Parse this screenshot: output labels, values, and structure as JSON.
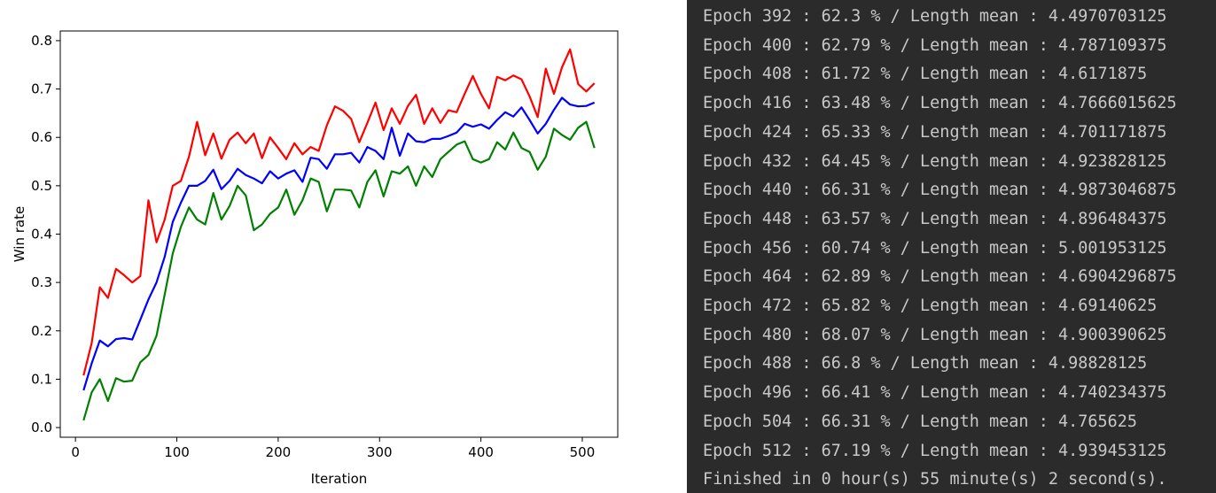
{
  "chart_data": {
    "type": "line",
    "xlabel": "Iteration",
    "ylabel": "Win rate",
    "xlim": [
      -15,
      535
    ],
    "ylim": [
      -0.02,
      0.82
    ],
    "x_ticks": [
      "0",
      "100",
      "200",
      "300",
      "400",
      "500"
    ],
    "y_ticks": [
      "0.0",
      "0.1",
      "0.2",
      "0.3",
      "0.4",
      "0.5",
      "0.6",
      "0.7",
      "0.8"
    ],
    "grid": false,
    "x": [
      8,
      16,
      24,
      32,
      40,
      48,
      56,
      64,
      72,
      80,
      88,
      96,
      104,
      112,
      120,
      128,
      136,
      144,
      152,
      160,
      168,
      176,
      184,
      192,
      200,
      208,
      216,
      224,
      232,
      240,
      248,
      256,
      264,
      272,
      280,
      288,
      296,
      304,
      312,
      320,
      328,
      336,
      344,
      352,
      360,
      368,
      376,
      384,
      392,
      400,
      408,
      416,
      424,
      432,
      440,
      448,
      456,
      464,
      472,
      480,
      488,
      496,
      504,
      512
    ],
    "series": [
      {
        "color": "#ff0000",
        "values": [
          0.108,
          0.175,
          0.29,
          0.268,
          0.328,
          0.315,
          0.3,
          0.313,
          0.47,
          0.383,
          0.43,
          0.5,
          0.51,
          0.56,
          0.632,
          0.563,
          0.608,
          0.556,
          0.595,
          0.61,
          0.588,
          0.608,
          0.557,
          0.6,
          0.578,
          0.555,
          0.588,
          0.565,
          0.58,
          0.572,
          0.625,
          0.664,
          0.655,
          0.638,
          0.59,
          0.63,
          0.672,
          0.615,
          0.66,
          0.628,
          0.665,
          0.688,
          0.628,
          0.66,
          0.63,
          0.656,
          0.652,
          0.69,
          0.727,
          0.69,
          0.66,
          0.725,
          0.718,
          0.728,
          0.72,
          0.685,
          0.642,
          0.742,
          0.69,
          0.745,
          0.782,
          0.71,
          0.695,
          0.712
        ]
      },
      {
        "color": "#0000ff",
        "values": [
          0.077,
          0.133,
          0.18,
          0.168,
          0.183,
          0.185,
          0.182,
          0.223,
          0.265,
          0.3,
          0.353,
          0.425,
          0.465,
          0.5,
          0.5,
          0.51,
          0.533,
          0.493,
          0.51,
          0.535,
          0.522,
          0.515,
          0.505,
          0.53,
          0.515,
          0.525,
          0.532,
          0.508,
          0.558,
          0.555,
          0.535,
          0.565,
          0.565,
          0.568,
          0.548,
          0.58,
          0.572,
          0.555,
          0.62,
          0.562,
          0.608,
          0.592,
          0.59,
          0.597,
          0.597,
          0.603,
          0.61,
          0.628,
          0.622,
          0.627,
          0.618,
          0.636,
          0.652,
          0.643,
          0.662,
          0.636,
          0.608,
          0.628,
          0.657,
          0.682,
          0.668,
          0.664,
          0.665,
          0.672
        ]
      },
      {
        "color": "#008000",
        "values": [
          0.015,
          0.073,
          0.1,
          0.055,
          0.102,
          0.095,
          0.097,
          0.135,
          0.15,
          0.19,
          0.275,
          0.36,
          0.415,
          0.455,
          0.43,
          0.42,
          0.485,
          0.43,
          0.458,
          0.5,
          0.48,
          0.408,
          0.42,
          0.442,
          0.455,
          0.492,
          0.44,
          0.47,
          0.515,
          0.508,
          0.447,
          0.492,
          0.492,
          0.49,
          0.455,
          0.508,
          0.532,
          0.478,
          0.53,
          0.525,
          0.54,
          0.5,
          0.54,
          0.518,
          0.555,
          0.57,
          0.585,
          0.592,
          0.555,
          0.548,
          0.555,
          0.59,
          0.575,
          0.61,
          0.578,
          0.57,
          0.533,
          0.56,
          0.618,
          0.605,
          0.595,
          0.62,
          0.632,
          0.578
        ]
      }
    ]
  },
  "console": {
    "lines": [
      "Epoch 392 : 62.3 % / Length mean : 4.4970703125",
      "Epoch 400 : 62.79 % / Length mean : 4.787109375",
      "Epoch 408 : 61.72 % / Length mean : 4.6171875",
      "Epoch 416 : 63.48 % / Length mean : 4.7666015625",
      "Epoch 424 : 65.33 % / Length mean : 4.701171875",
      "Epoch 432 : 64.45 % / Length mean : 4.923828125",
      "Epoch 440 : 66.31 % / Length mean : 4.9873046875",
      "Epoch 448 : 63.57 % / Length mean : 4.896484375",
      "Epoch 456 : 60.74 % / Length mean : 5.001953125",
      "Epoch 464 : 62.89 % / Length mean : 4.6904296875",
      "Epoch 472 : 65.82 % / Length mean : 4.69140625",
      "Epoch 480 : 68.07 % / Length mean : 4.900390625",
      "Epoch 488 : 66.8 % / Length mean : 4.98828125",
      "Epoch 496 : 66.41 % / Length mean : 4.740234375",
      "Epoch 504 : 66.31 % / Length mean : 4.765625",
      "Epoch 512 : 67.19 % / Length mean : 4.939453125",
      "Finished in 0 hour(s) 55 minute(s) 2 second(s)."
    ]
  }
}
